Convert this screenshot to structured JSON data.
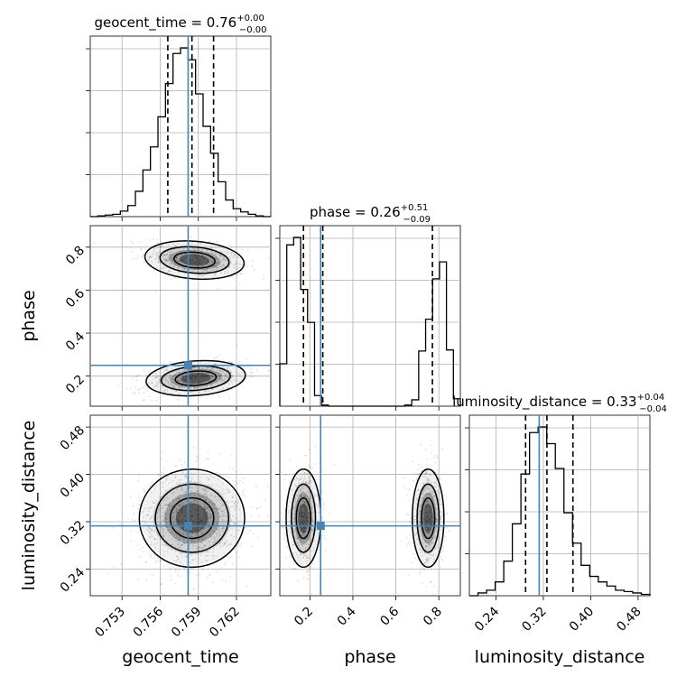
{
  "chart_data": {
    "type": "corner",
    "parameters": [
      {
        "key": "geocent_time",
        "label": "geocent_time",
        "truth": 0.7582,
        "range": [
          0.7505,
          0.7647
        ],
        "ticks": [
          0.753,
          0.756,
          0.759,
          0.762
        ],
        "tick_labels": [
          "0.753",
          "0.756",
          "0.759",
          "0.762"
        ],
        "title": {
          "text": "geocent_time = 0.76",
          "plus": "+0.00",
          "minus": "−0.00"
        },
        "quantiles": [
          0.7566,
          0.7585,
          0.7602
        ],
        "hist": {
          "edges_from": 0.7505,
          "edges_to": 0.7647,
          "counts": [
            0,
            1,
            2,
            3,
            7,
            14,
            32,
            59,
            88,
            126,
            168,
            206,
            213,
            198,
            155,
            114,
            80,
            44,
            21,
            10,
            6,
            3,
            1,
            0
          ]
        }
      },
      {
        "key": "phase",
        "label": "phase",
        "truth": 0.25,
        "range": [
          0.06,
          0.9
        ],
        "ticks": [
          0.2,
          0.4,
          0.6,
          0.8
        ],
        "tick_labels": [
          "0.2",
          "0.4",
          "0.6",
          "0.8"
        ],
        "title": {
          "text": "phase = 0.26",
          "plus": "+0.51",
          "minus": "−0.09"
        },
        "quantiles": [
          0.17,
          0.26,
          0.77
        ],
        "hist": {
          "edges_from": 0.06,
          "edges_to": 0.9,
          "counts": [
            40,
            152,
            159,
            110,
            79,
            10,
            1,
            0,
            0,
            0,
            0,
            0,
            0,
            0,
            0,
            0,
            0,
            0,
            1,
            6,
            52,
            82,
            120,
            136,
            53,
            7
          ]
        }
      },
      {
        "key": "luminosity_distance",
        "label": "luminosity_distance",
        "truth": 0.313,
        "range": [
          0.195,
          0.5
        ],
        "ticks": [
          0.24,
          0.32,
          0.4,
          0.48
        ],
        "tick_labels": [
          "0.24",
          "0.32",
          "0.40",
          "0.48"
        ],
        "title": {
          "text": "luminosity_distance = 0.33",
          "plus": "+0.04",
          "minus": "−0.04"
        },
        "quantiles": [
          0.29,
          0.326,
          0.37
        ],
        "hist": {
          "edges_from": 0.195,
          "edges_to": 0.5,
          "counts": [
            0,
            2,
            4,
            10,
            25,
            52,
            88,
            118,
            122,
            110,
            92,
            60,
            38,
            22,
            14,
            10,
            7,
            4,
            3,
            2,
            1
          ]
        }
      }
    ],
    "pairs": [
      {
        "x": "geocent_time",
        "y": "phase",
        "modes": [
          {
            "cx": 0.7587,
            "cy": 0.74,
            "sx": 0.0017,
            "sy": 0.038,
            "rho": -0.35,
            "weight": 0.5
          },
          {
            "cx": 0.7588,
            "cy": 0.19,
            "sx": 0.0017,
            "sy": 0.035,
            "rho": 0.35,
            "weight": 0.5
          }
        ]
      },
      {
        "x": "geocent_time",
        "y": "luminosity_distance",
        "modes": [
          {
            "cx": 0.7585,
            "cy": 0.326,
            "sx": 0.0018,
            "sy": 0.036,
            "rho": 0.05,
            "weight": 1.0
          }
        ]
      },
      {
        "x": "phase",
        "y": "luminosity_distance",
        "modes": [
          {
            "cx": 0.17,
            "cy": 0.326,
            "sx": 0.035,
            "sy": 0.036,
            "rho": 0.0,
            "weight": 0.55
          },
          {
            "cx": 0.75,
            "cy": 0.326,
            "sx": 0.032,
            "sy": 0.036,
            "rho": 0.0,
            "weight": 0.45
          }
        ]
      }
    ],
    "truth_color": "#4682b4",
    "quantile_style": "dashed black",
    "grid": true
  }
}
